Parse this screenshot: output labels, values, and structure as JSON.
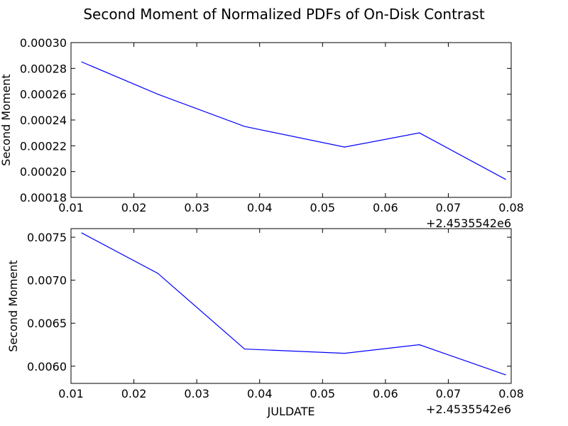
{
  "figure": {
    "title": "Second Moment of Normalized PDFs of On-Disk Contrast"
  },
  "chart_data": [
    {
      "type": "line",
      "x": [
        0.0117,
        0.0238,
        0.0376,
        0.0535,
        0.0654,
        0.0791
      ],
      "series": [
        {
          "values": [
            0.000285,
            0.00026,
            0.000235,
            0.000219,
            0.00023,
            0.000194
          ],
          "color": "#0000ff"
        }
      ],
      "xlim": [
        0.01,
        0.08
      ],
      "ylim": [
        0.00018,
        0.0003
      ],
      "xticks": [
        "0.01",
        "0.02",
        "0.03",
        "0.04",
        "0.05",
        "0.06",
        "0.07",
        "0.08"
      ],
      "yticks": [
        "0.00018",
        "0.00020",
        "0.00022",
        "0.00024",
        "0.00026",
        "0.00028",
        "0.00030"
      ],
      "x_offset_label": "+2.4535542e6",
      "xlabel": "",
      "ylabel": "Second Moment",
      "grid": false
    },
    {
      "type": "line",
      "x": [
        0.0117,
        0.0238,
        0.0376,
        0.0535,
        0.0654,
        0.0791
      ],
      "series": [
        {
          "values": [
            0.00755,
            0.00708,
            0.0062,
            0.00615,
            0.00625,
            0.0059
          ],
          "color": "#0000ff"
        }
      ],
      "xlim": [
        0.01,
        0.08
      ],
      "ylim": [
        0.0058,
        0.0076
      ],
      "xticks": [
        "0.01",
        "0.02",
        "0.03",
        "0.04",
        "0.05",
        "0.06",
        "0.07",
        "0.08"
      ],
      "yticks": [
        "0.0060",
        "0.0065",
        "0.0070",
        "0.0075"
      ],
      "x_offset_label": "+2.4535542e6",
      "xlabel": "JULDATE",
      "ylabel": "Second Moment",
      "grid": false
    }
  ]
}
